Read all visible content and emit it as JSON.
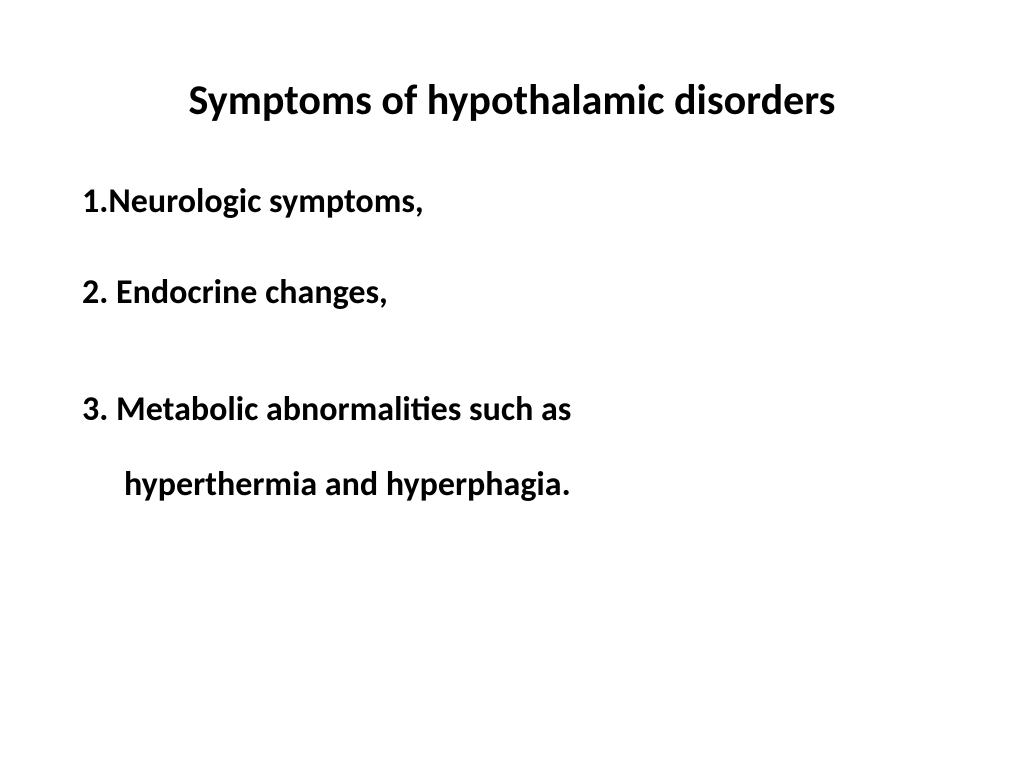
{
  "slide": {
    "title": "Symptoms of hypothalamic disorders",
    "items": [
      {
        "number": "1.",
        "text": "Neurologic  symptoms,"
      },
      {
        "number": "2.",
        "text": " Endocrine changes,"
      },
      {
        "number": "3.",
        "text": " Metabolic abnormalities such as",
        "continuation": "hyperthermia and hyperphagia."
      }
    ],
    "background_color": "#ffffff",
    "text_color": "#000000",
    "title_fontsize": 42,
    "body_fontsize": 34,
    "font_family": "Calibri",
    "font_weight": "bold"
  }
}
